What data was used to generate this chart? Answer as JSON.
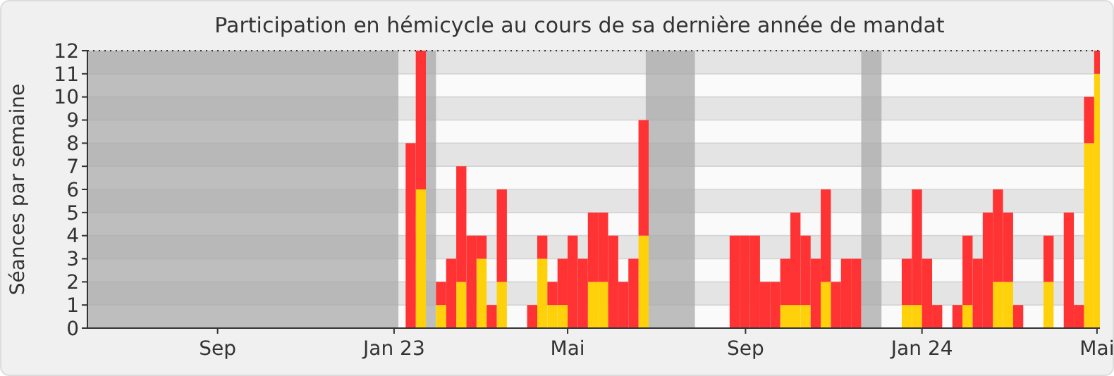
{
  "chart_data": {
    "type": "bar",
    "title": "Participation en hémicycle au cours de sa dernière année de mandat",
    "ylabel": "Séances par semaine",
    "stacked": true,
    "x": [
      "2023-01-09",
      "2023-01-16",
      "2023-01-23",
      "2023-01-30",
      "2023-02-06",
      "2023-02-13",
      "2023-02-20",
      "2023-02-27",
      "2023-03-06",
      "2023-03-13",
      "2023-03-20",
      "2023-03-27",
      "2023-04-03",
      "2023-04-10",
      "2023-04-17",
      "2023-04-24",
      "2023-05-01",
      "2023-05-08",
      "2023-05-15",
      "2023-05-22",
      "2023-05-29",
      "2023-06-05",
      "2023-06-12",
      "2023-06-19",
      "2023-06-26",
      "2023-07-03",
      "2023-07-10",
      "2023-07-17",
      "2023-07-24",
      "2023-07-31",
      "2023-08-07",
      "2023-08-14",
      "2023-08-21",
      "2023-08-28",
      "2023-09-04",
      "2023-09-11",
      "2023-09-18",
      "2023-09-25",
      "2023-10-02",
      "2023-10-09",
      "2023-10-16",
      "2023-10-23",
      "2023-10-30",
      "2023-11-06",
      "2023-11-13",
      "2023-11-20",
      "2023-11-27",
      "2023-12-04",
      "2023-12-11",
      "2023-12-18",
      "2023-12-25",
      "2024-01-01",
      "2024-01-08",
      "2024-01-15",
      "2024-01-22",
      "2024-01-29",
      "2024-02-05",
      "2024-02-12",
      "2024-02-19",
      "2024-02-26",
      "2024-03-04",
      "2024-03-11",
      "2024-03-18",
      "2024-03-25",
      "2024-04-01",
      "2024-04-08",
      "2024-04-15",
      "2024-04-22",
      "2024-04-29"
    ],
    "series": [
      {
        "color": "#ffd10a",
        "values": [
          0,
          6,
          null,
          1,
          0,
          2,
          0,
          3,
          0,
          2,
          0,
          0,
          0,
          3,
          1,
          1,
          0,
          0,
          2,
          2,
          0,
          0,
          0,
          4,
          null,
          null,
          null,
          null,
          null,
          0,
          0,
          0,
          0,
          0,
          0,
          0,
          0,
          1,
          1,
          1,
          0,
          2,
          0,
          0,
          0,
          null,
          null,
          0,
          0,
          1,
          1,
          0,
          0,
          0,
          0,
          1,
          0,
          0,
          2,
          2,
          0,
          0,
          0,
          2,
          0,
          0,
          0,
          8,
          11
        ]
      },
      {
        "color": "#ff3333",
        "values": [
          8,
          6,
          null,
          1,
          3,
          5,
          4,
          1,
          1,
          4,
          0,
          0,
          1,
          1,
          1,
          2,
          4,
          3,
          3,
          3,
          4,
          2,
          3,
          5,
          null,
          null,
          null,
          null,
          null,
          0,
          0,
          0,
          4,
          4,
          4,
          2,
          2,
          2,
          4,
          3,
          3,
          4,
          2,
          3,
          3,
          null,
          null,
          0,
          0,
          2,
          5,
          3,
          1,
          0,
          1,
          3,
          3,
          5,
          4,
          3,
          1,
          0,
          0,
          2,
          0,
          5,
          1,
          2,
          1
        ]
      }
    ],
    "xlim": [
      "2022-06-03",
      "2024-05-03"
    ],
    "xticks": [
      {
        "value": "2022-09-01",
        "label": "Sep"
      },
      {
        "value": "2023-01-01",
        "label": "Jan 23"
      },
      {
        "value": "2023-05-01",
        "label": "Mai"
      },
      {
        "value": "2023-09-01",
        "label": "Sep"
      },
      {
        "value": "2024-01-01",
        "label": "Jan 24"
      },
      {
        "value": "2024-05-01",
        "label": "Mai"
      }
    ],
    "ylim": [
      0,
      12
    ],
    "yticks": [
      0,
      1,
      2,
      3,
      4,
      5,
      6,
      7,
      8,
      9,
      10,
      11,
      12
    ],
    "grid": "y",
    "bands": [
      {
        "axis": "x",
        "from": "2022-06-03",
        "to": "2023-01-04",
        "color": "#aaaaaa"
      },
      {
        "axis": "x",
        "from": "2023-01-23",
        "to": "2023-01-30",
        "color": "#aaaaaa"
      },
      {
        "axis": "x",
        "from": "2023-06-24",
        "to": "2023-07-28",
        "color": "#aaaaaa"
      },
      {
        "axis": "x",
        "from": "2023-11-20",
        "to": "2023-12-04",
        "color": "#aaaaaa"
      }
    ]
  }
}
